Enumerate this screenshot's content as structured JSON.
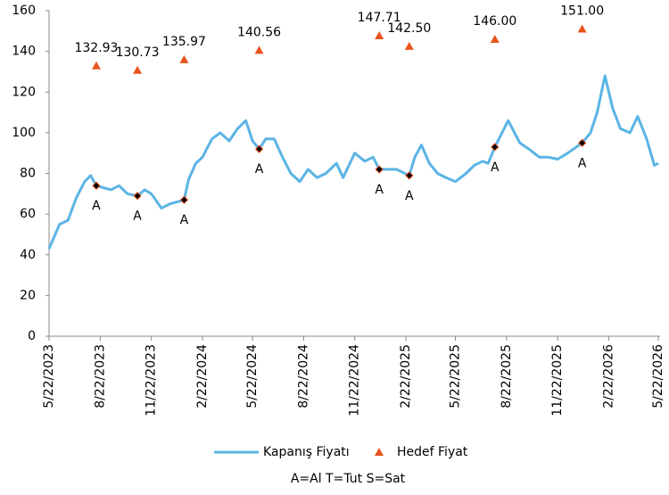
{
  "chart_data": {
    "type": "line",
    "xlim": [
      "2023-05-22",
      "2026-05-22"
    ],
    "xticks": [
      {
        "value": "2023-05-22",
        "label": "5/22/2023"
      },
      {
        "value": "2023-08-22",
        "label": "8/22/2023"
      },
      {
        "value": "2023-11-22",
        "label": "11/22/2023"
      },
      {
        "value": "2024-02-22",
        "label": "2/22/2024"
      },
      {
        "value": "2024-05-22",
        "label": "5/22/2024"
      },
      {
        "value": "2024-08-22",
        "label": "8/22/2024"
      },
      {
        "value": "2024-11-22",
        "label": "11/22/2024"
      },
      {
        "value": "2025-02-22",
        "label": "2/22/2025"
      },
      {
        "value": "2025-05-22",
        "label": "5/22/2025"
      },
      {
        "value": "2025-08-22",
        "label": "8/22/2025"
      },
      {
        "value": "2025-11-22",
        "label": "11/22/2025"
      },
      {
        "value": "2026-02-22",
        "label": "2/22/2026"
      },
      {
        "value": "2026-05-22",
        "label": "5/22/2026"
      }
    ],
    "ylim": [
      0,
      160
    ],
    "yticks": [
      0,
      20,
      40,
      60,
      80,
      100,
      120,
      140,
      160
    ],
    "legend": "bottom",
    "series": [
      {
        "name": "Kapanış Fiyatı",
        "color": "#5bb4e5",
        "x": [
          "2023-05-22",
          "2023-06-10",
          "2023-06-25",
          "2023-07-10",
          "2023-07-25",
          "2023-08-05",
          "2023-08-15",
          "2023-09-10",
          "2023-09-25",
          "2023-10-10",
          "2023-10-28",
          "2023-11-10",
          "2023-11-22",
          "2023-12-10",
          "2023-12-25",
          "2024-01-20",
          "2024-01-28",
          "2024-02-10",
          "2024-02-22",
          "2024-03-10",
          "2024-03-25",
          "2024-04-10",
          "2024-04-25",
          "2024-05-10",
          "2024-05-22",
          "2024-06-03",
          "2024-06-15",
          "2024-06-30",
          "2024-07-15",
          "2024-07-30",
          "2024-08-15",
          "2024-08-30",
          "2024-09-15",
          "2024-10-01",
          "2024-10-20",
          "2024-11-01",
          "2024-11-22",
          "2024-12-10",
          "2024-12-25",
          "2025-01-05",
          "2025-02-05",
          "2025-02-28",
          "2025-03-10",
          "2025-03-22",
          "2025-04-05",
          "2025-04-20",
          "2025-05-05",
          "2025-05-22",
          "2025-06-10",
          "2025-06-25",
          "2025-07-10",
          "2025-07-20",
          "2025-08-01",
          "2025-08-25",
          "2025-09-15",
          "2025-10-01",
          "2025-10-20",
          "2025-11-05",
          "2025-11-22",
          "2025-12-10",
          "2026-01-05",
          "2026-01-20",
          "2026-02-01",
          "2026-02-15",
          "2026-03-01",
          "2026-03-15",
          "2026-04-01",
          "2026-04-15",
          "2026-05-01",
          "2026-05-15",
          "2026-05-22"
        ],
        "values": [
          43,
          55,
          57,
          68,
          76,
          79,
          74,
          72,
          74,
          70,
          69,
          72,
          70,
          63,
          65,
          67,
          77,
          85,
          88,
          97,
          100,
          96,
          102,
          106,
          96,
          92,
          97,
          97,
          88,
          80,
          76,
          82,
          78,
          80,
          85,
          78,
          90,
          86,
          88,
          82,
          82,
          79,
          88,
          94,
          85,
          80,
          78,
          76,
          80,
          84,
          86,
          85,
          93,
          106,
          95,
          92,
          88,
          88,
          87,
          90,
          95,
          100,
          110,
          128,
          112,
          102,
          100,
          108,
          97,
          84,
          85
        ]
      },
      {
        "name": "Hedef Fiyat",
        "color": "#e8541e",
        "x": [
          "2023-08-15",
          "2023-10-28",
          "2024-01-20",
          "2024-06-03",
          "2025-01-05",
          "2025-02-28",
          "2025-08-01",
          "2026-01-05"
        ],
        "values": [
          132.93,
          130.73,
          135.97,
          140.56,
          147.71,
          142.5,
          146,
          151
        ],
        "value_labels": [
          "132.93",
          "130.73",
          "135.97",
          "140.56",
          "147.71",
          "142.50",
          "146.00",
          "151.00"
        ]
      }
    ],
    "ratings": {
      "x": [
        "2023-08-15",
        "2023-10-28",
        "2024-01-20",
        "2024-06-03",
        "2025-01-05",
        "2025-02-28",
        "2025-08-01",
        "2026-01-05"
      ],
      "values": [
        74,
        69,
        67,
        92,
        82,
        79,
        93,
        95
      ],
      "labels": [
        "A",
        "A",
        "A",
        "A",
        "A",
        "A",
        "A",
        "A"
      ]
    },
    "note": "A=Al   T=Tut   S=Sat"
  }
}
